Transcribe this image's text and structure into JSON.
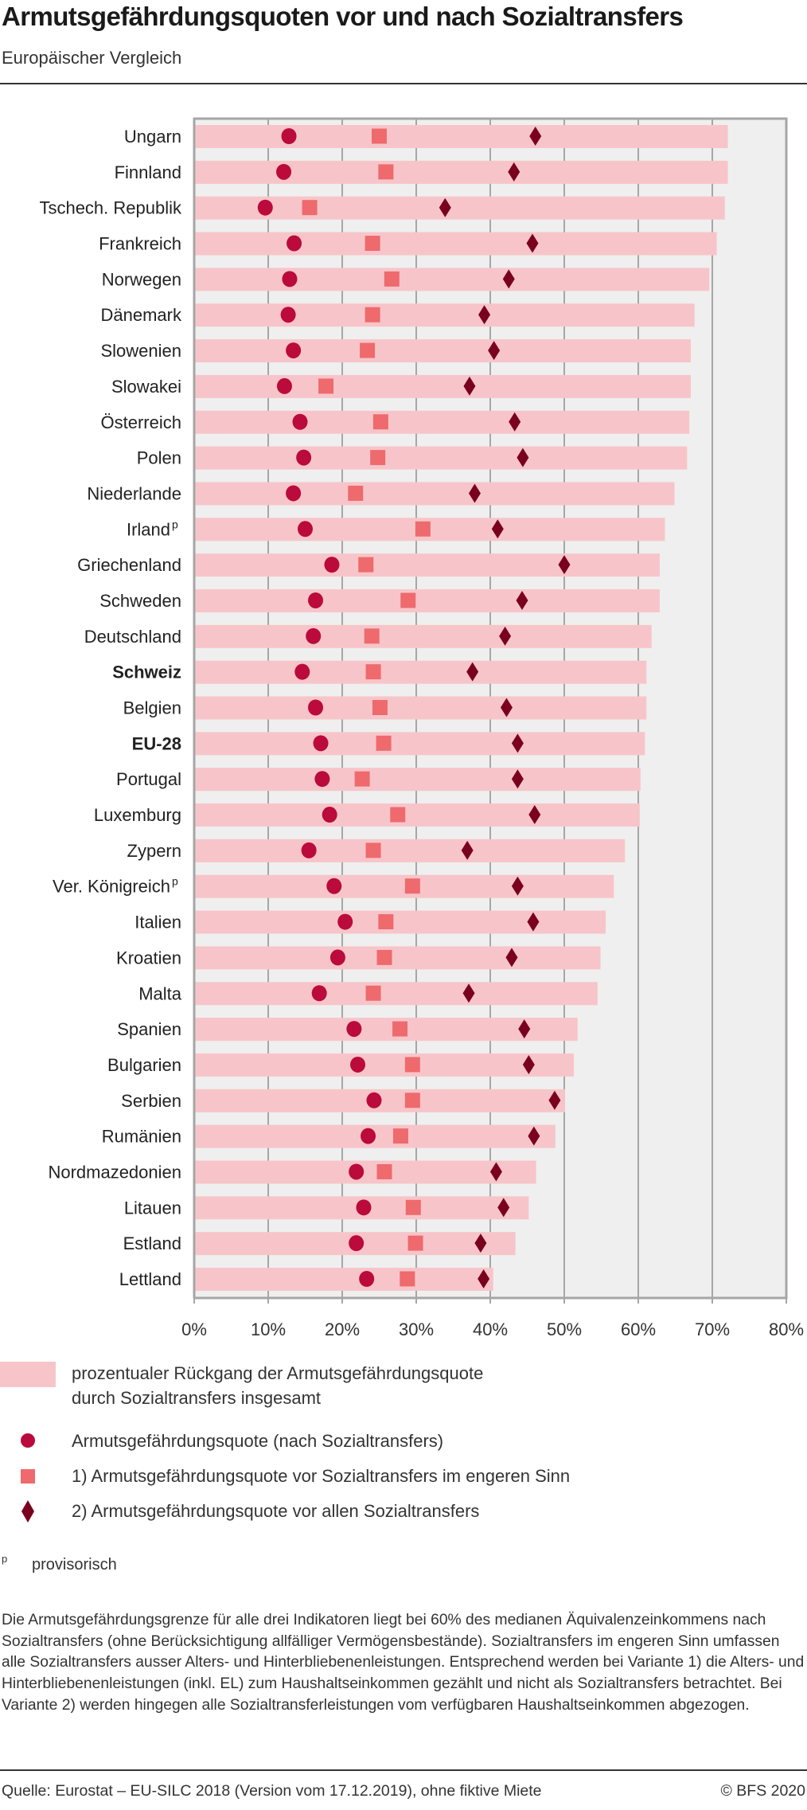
{
  "header": {
    "title": "Armutsgefährdungsquoten vor und nach Sozialtransfers",
    "subtitle": "Europäischer Vergleich"
  },
  "colors": {
    "bar": "#f7c5c9",
    "after_transfers": "#bb0a3c",
    "before_narrow": "#ee6a6d",
    "before_all": "#7a0020",
    "plot_background": "#efefef",
    "grid": "#a6a6a6"
  },
  "chart_data": {
    "type": "bar",
    "orientation": "horizontal",
    "title": "Armutsgefährdungsquoten vor und nach Sozialtransfers",
    "subtitle": "Europäischer Vergleich",
    "xlabel": "",
    "ylabel": "",
    "xlim": [
      0,
      80
    ],
    "x_ticks": [
      "0%",
      "10%",
      "20%",
      "30%",
      "40%",
      "50%",
      "60%",
      "70%",
      "80%"
    ],
    "grid": true,
    "legend_position": "bottom",
    "categories": [
      "Ungarn",
      "Finnland",
      "Tschech. Republik",
      "Frankreich",
      "Norwegen",
      "Dänemark",
      "Slowenien",
      "Slowakei",
      "Österreich",
      "Polen",
      "Niederlande",
      "Irland",
      "Griechenland",
      "Schweden",
      "Deutschland",
      "Schweiz",
      "Belgien",
      "EU-28",
      "Portugal",
      "Luxemburg",
      "Zypern",
      "Ver. Königreich",
      "Italien",
      "Kroatien",
      "Malta",
      "Spanien",
      "Bulgarien",
      "Serbien",
      "Rumänien",
      "Nordmazedonien",
      "Litauen",
      "Estland",
      "Lettland"
    ],
    "category_superscripts": [
      "",
      "",
      "",
      "",
      "",
      "",
      "",
      "",
      "",
      "",
      "",
      "p",
      "",
      "",
      "",
      "",
      "",
      "",
      "",
      "",
      "",
      "p",
      "",
      "",
      "",
      "",
      "",
      "",
      "",
      "",
      "",
      "",
      ""
    ],
    "bold_categories": [
      "Schweiz",
      "EU-28"
    ],
    "series": [
      {
        "name": "prozentualer Rückgang der Armutsgefährdungsquote durch Sozialtransfers insgesamt",
        "kind": "bar",
        "values": [
          72.1,
          72.1,
          71.7,
          70.6,
          69.6,
          67.6,
          67.1,
          67.1,
          66.9,
          66.6,
          64.9,
          63.6,
          62.9,
          62.9,
          61.8,
          61.1,
          61.1,
          60.9,
          60.3,
          60.2,
          58.2,
          56.7,
          55.6,
          54.9,
          54.5,
          51.8,
          51.3,
          50.1,
          48.8,
          46.2,
          45.2,
          43.4,
          40.4
        ]
      },
      {
        "name": "Armutsgefährdungsquote (nach Sozialtransfers)",
        "kind": "circle",
        "values": [
          12.8,
          12.1,
          9.6,
          13.5,
          12.9,
          12.7,
          13.4,
          12.2,
          14.3,
          14.8,
          13.4,
          15.0,
          18.6,
          16.4,
          16.1,
          14.6,
          16.4,
          17.1,
          17.3,
          18.3,
          15.5,
          18.9,
          20.4,
          19.4,
          16.9,
          21.6,
          22.1,
          24.3,
          23.5,
          21.9,
          22.9,
          21.9,
          23.3
        ]
      },
      {
        "name": "1) Armutsgefährdungsquote vor Sozialtransfers im engeren Sinn",
        "kind": "square",
        "values": [
          25.0,
          25.9,
          15.6,
          24.1,
          26.7,
          24.1,
          23.4,
          17.8,
          25.2,
          24.8,
          21.8,
          30.9,
          23.2,
          28.9,
          24.0,
          24.2,
          25.1,
          25.6,
          22.7,
          27.5,
          24.2,
          29.5,
          25.9,
          25.7,
          24.2,
          27.8,
          29.5,
          29.5,
          27.9,
          25.7,
          29.6,
          29.9,
          28.8
        ]
      },
      {
        "name": "2) Armutsgefährdungsquote vor allen Sozialtransfers",
        "kind": "diamond",
        "values": [
          46.1,
          43.2,
          33.9,
          45.7,
          42.5,
          39.2,
          40.5,
          37.2,
          43.3,
          44.4,
          37.9,
          41.0,
          50.0,
          44.3,
          42.0,
          37.6,
          42.2,
          43.7,
          43.7,
          46.0,
          36.9,
          43.7,
          45.8,
          42.9,
          37.1,
          44.6,
          45.2,
          48.7,
          45.9,
          40.8,
          41.8,
          38.7,
          39.1
        ]
      }
    ]
  },
  "legend": {
    "bar_line1": "prozentualer Rückgang der Armutsgefährdungsquote",
    "bar_line2": "durch Sozialtransfers insgesamt",
    "circle": "Armutsgefährdungsquote (nach Sozialtransfers)",
    "square": "1) Armutsgefährdungsquote vor Sozialtransfers im engeren Sinn",
    "diamond": "2) Armutsgefährdungsquote vor allen Sozialtransfers"
  },
  "footnote": {
    "symbol": "p",
    "text": "provisorisch"
  },
  "description": "Die Armutsgefährdungsgrenze für alle drei Indikatoren liegt bei 60% des medianen Äquivalenz­einkommens nach Sozialtransfers (ohne Berücksichtigung allfälliger Vermögensbestände). Sozialtransfers im engeren Sinn umfassen alle Sozialtransfers ausser Alters- und Hinterbliebenen­leistungen. Entsprechend werden bei Variante 1) die Alters- und Hinterbliebenenleistungen (inkl. EL) zum Haushaltseinkommen gezählt und nicht als Sozialtransfers betrachtet. Bei Variante 2) werden hingegen alle Sozialtransferleistungen vom verfügbaren Haushaltseinkommen abgezogen.",
  "footer": {
    "source": "Quelle: Eurostat – EU-SILC 2018 (Version vom 17.12.2019), ohne fiktive Miete",
    "copyright": "© BFS 2020"
  }
}
